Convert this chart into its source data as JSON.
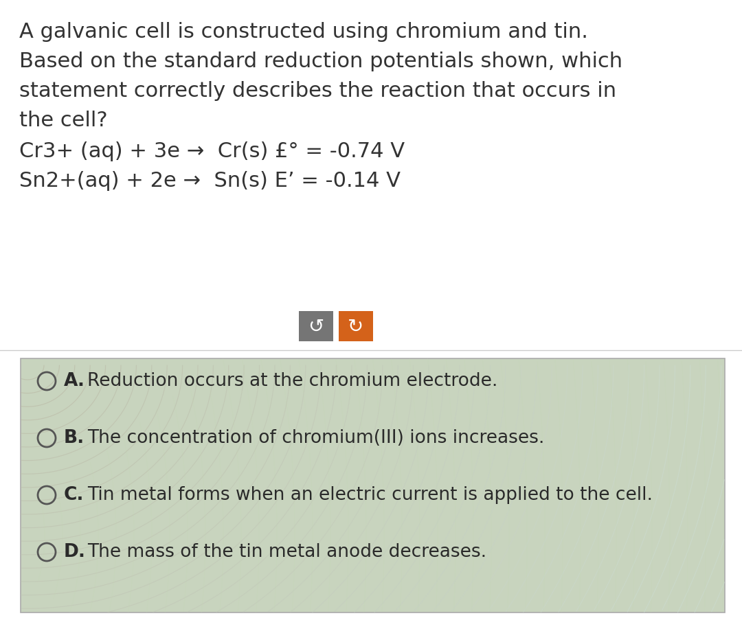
{
  "bg_color": "#ffffff",
  "question_text_lines": [
    "A galvanic cell is constructed using chromium and tin.",
    "Based on the standard reduction potentials shown, which",
    "statement correctly describes the reaction that occurs in",
    "the cell?"
  ],
  "equation_lines": [
    "Cr3+ (aq) + 3e →  Cr(s) £° = -0.74 V",
    "Sn2+(aq) + 2e →  Sn(s) E’ = -0.14 V"
  ],
  "button1_color": "#757575",
  "button2_color": "#d4621a",
  "answer_box_bg": "#c8d4be",
  "answer_box_stroke": "#aaaaaa",
  "options": [
    {
      "label": "A.",
      "text": "Reduction occurs at the chromium electrode."
    },
    {
      "label": "B.",
      "text": "The concentration of chromium(III) ions increases."
    },
    {
      "label": "C.",
      "text": "Tin metal forms when an electric current is applied to the cell."
    },
    {
      "label": "D.",
      "text": "The mass of the tin metal anode decreases."
    }
  ],
  "text_color": "#333333",
  "option_text_color": "#2a2a2a",
  "question_fontsize": 22,
  "eq_fontsize": 22,
  "option_fontsize": 19,
  "swirl_color1": "#b8ccaa",
  "swirl_color2": "#c0d4b0",
  "swirl_color3": "#d8e8cc"
}
